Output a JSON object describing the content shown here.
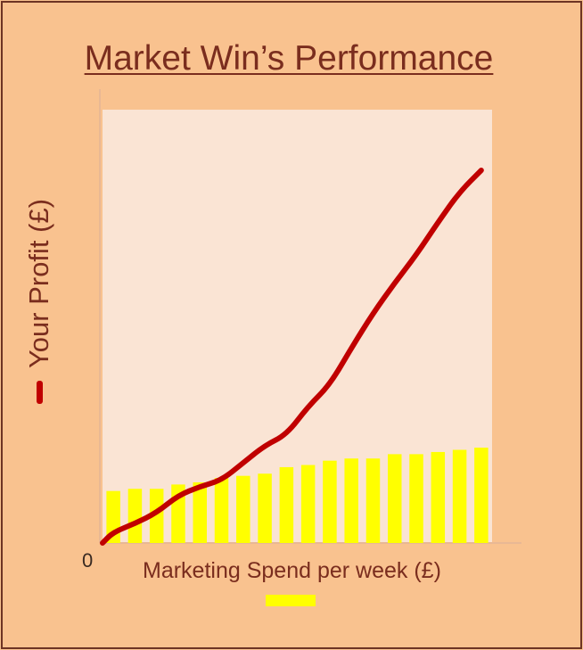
{
  "chart_data": {
    "type": "bar+line",
    "title": "Market Win’s Performance",
    "xlabel": "Marketing Spend per week (£)",
    "ylabel": "Your Profit (£)",
    "origin_label": "0",
    "ylim": [
      0,
      100
    ],
    "colors": {
      "background": "#f9c28f",
      "plot_area": "#fae4d4",
      "bars": "#ffff00",
      "line": "#c00000",
      "text": "#7a2d1e"
    },
    "series": [
      {
        "kind": "bar",
        "values": [
          12,
          12.5,
          12.5,
          13.5,
          14,
          15,
          15.5,
          16,
          17.5,
          18,
          19,
          19.5,
          19.5,
          20.5,
          20.5,
          21,
          21.5,
          22
        ]
      },
      {
        "kind": "line",
        "x": [
          0,
          0.5,
          1.5,
          2.5,
          3.5,
          4.5,
          5.5,
          6.5,
          7.5,
          8.5,
          9.5,
          10.5,
          11.5,
          12.5,
          13.5,
          14.5,
          15.5,
          16.5,
          17.5
        ],
        "values": [
          0,
          2.5,
          4.5,
          7,
          11,
          13,
          14.5,
          18.5,
          22.5,
          25,
          31.5,
          36.5,
          45,
          53,
          60,
          66.5,
          74,
          81,
          86
        ]
      }
    ]
  }
}
